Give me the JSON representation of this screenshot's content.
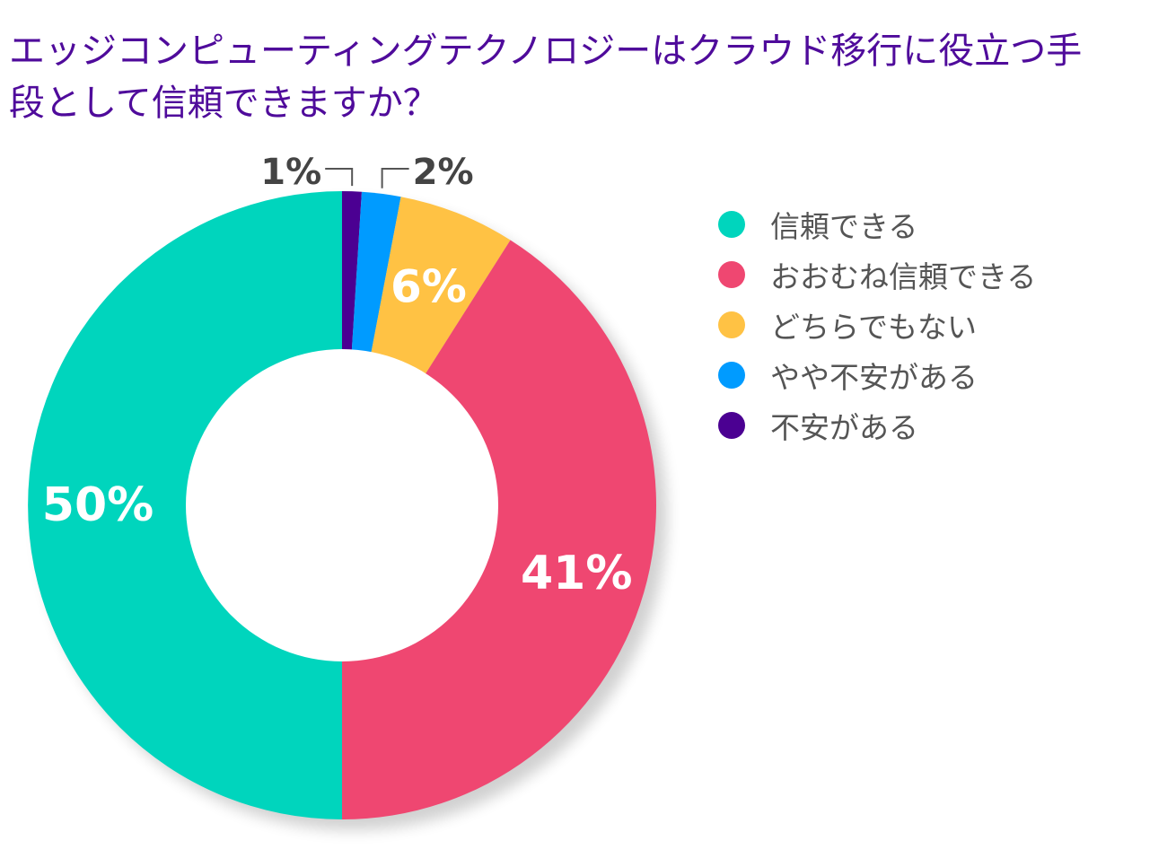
{
  "chart_data": {
    "type": "pie",
    "donut": true,
    "title": "エッジコンピューティングテクノロジーはクラウド移行に役立つ手段として信頼できますか？",
    "start": "top",
    "direction": "clockwise",
    "slices": [
      {
        "label": "不安がある",
        "value": 1,
        "display": "1%",
        "color": "#4B0092"
      },
      {
        "label": "やや不安がある",
        "value": 2,
        "display": "2%",
        "color": "#009BFF"
      },
      {
        "label": "どちらでもない",
        "value": 6,
        "display": "6%",
        "color": "#FFC244"
      },
      {
        "label": "おおむね信頼できる",
        "value": 41,
        "display": "41%",
        "color": "#EF4771"
      },
      {
        "label": "信頼できる",
        "value": 50,
        "display": "50%",
        "color": "#00D5BD"
      }
    ],
    "legend": {
      "position": "right",
      "items": [
        "信頼できる",
        "おおむね信頼できる",
        "どちらでもない",
        "やや不安がある",
        "不安がある"
      ]
    }
  }
}
